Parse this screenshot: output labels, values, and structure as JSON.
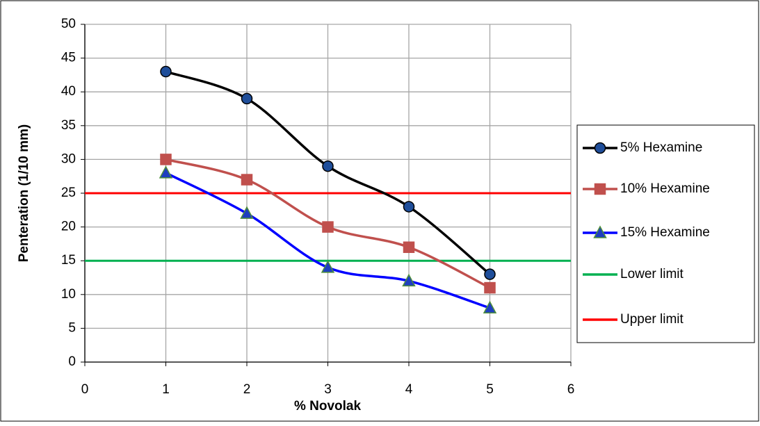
{
  "chart_data": {
    "type": "line",
    "x_label": "% Novolak",
    "y_label": "Penteration (1/10 mm)",
    "x": [
      1,
      2,
      3,
      4,
      5
    ],
    "series": [
      {
        "name": "5% Hexamine",
        "color": "#000000",
        "marker": "circle",
        "marker_fill": "#1f4e9a",
        "values": [
          43,
          39,
          29,
          23,
          13
        ]
      },
      {
        "name": "10% Hexamine",
        "color": "#c0504d",
        "marker": "square",
        "marker_fill": "#c0504d",
        "values": [
          30,
          27,
          20,
          17,
          11
        ]
      },
      {
        "name": "15% Hexamine",
        "color": "#0000ff",
        "marker": "triangle",
        "marker_fill": "#1f3fbf",
        "values": [
          28,
          22,
          14,
          12,
          8
        ]
      }
    ],
    "reference_lines": [
      {
        "name": "Lower limit",
        "color": "#00b050",
        "value": 15
      },
      {
        "name": "Upper limit",
        "color": "#ff0000",
        "value": 25
      }
    ],
    "xlim": [
      0,
      6
    ],
    "xticks": [
      0,
      1,
      2,
      3,
      4,
      5,
      6
    ],
    "ylim": [
      0,
      50
    ],
    "yticks": [
      0,
      5,
      10,
      15,
      20,
      25,
      30,
      35,
      40,
      45,
      50
    ],
    "grid": true,
    "smooth": true,
    "legend": "right"
  }
}
